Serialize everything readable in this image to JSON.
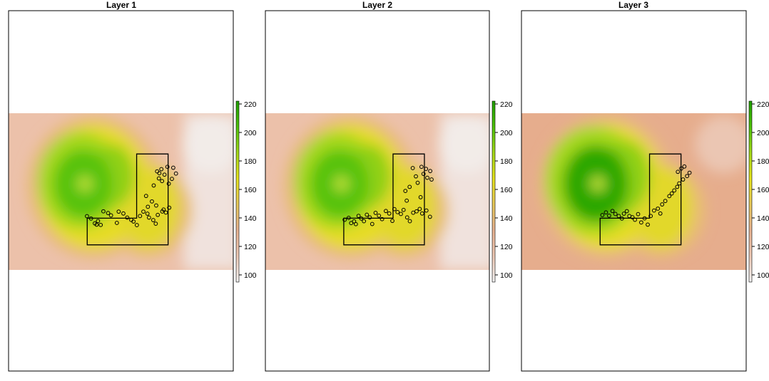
{
  "chart_data": [
    {
      "type": "heatmap",
      "title": "Layer 1",
      "xlabel": "",
      "ylabel": "",
      "legend_placement": "right",
      "color_scale": {
        "min": 95,
        "max": 222,
        "ticks": [
          100,
          120,
          140,
          160,
          180,
          200,
          220
        ],
        "tick_labels": [
          "100",
          "120",
          "140",
          "160",
          "180",
          "200",
          "220"
        ],
        "colors": [
          "#f2f2f2",
          "#eec9b5",
          "#e8b291",
          "#e8c95a",
          "#e6e31c",
          "#a3d818",
          "#4ec20a",
          "#1f9e00"
        ]
      },
      "points": [
        [
          0.349,
          0.657
        ],
        [
          0.367,
          0.672
        ],
        [
          0.384,
          0.703
        ],
        [
          0.398,
          0.688
        ],
        [
          0.392,
          0.711
        ],
        [
          0.41,
          0.713
        ],
        [
          0.422,
          0.626
        ],
        [
          0.443,
          0.637
        ],
        [
          0.456,
          0.652
        ],
        [
          0.482,
          0.7
        ],
        [
          0.49,
          0.628
        ],
        [
          0.511,
          0.64
        ],
        [
          0.528,
          0.666
        ],
        [
          0.546,
          0.681
        ],
        [
          0.556,
          0.691
        ],
        [
          0.571,
          0.714
        ],
        [
          0.585,
          0.656
        ],
        [
          0.6,
          0.628
        ],
        [
          0.618,
          0.641
        ],
        [
          0.625,
          0.666
        ],
        [
          0.644,
          0.682
        ],
        [
          0.655,
          0.705
        ],
        [
          0.664,
          0.649
        ],
        [
          0.684,
          0.627
        ],
        [
          0.69,
          0.615
        ],
        [
          0.7,
          0.634
        ],
        [
          0.715,
          0.603
        ],
        [
          0.657,
          0.589
        ],
        [
          0.638,
          0.563
        ],
        [
          0.62,
          0.597
        ],
        [
          0.612,
          0.528
        ],
        [
          0.646,
          0.461
        ],
        [
          0.669,
          0.416
        ],
        [
          0.683,
          0.433
        ],
        [
          0.694,
          0.392
        ],
        [
          0.713,
          0.45
        ],
        [
          0.727,
          0.419
        ],
        [
          0.68,
          0.357
        ],
        [
          0.707,
          0.342
        ],
        [
          0.733,
          0.348
        ],
        [
          0.745,
          0.385
        ],
        [
          0.661,
          0.371
        ],
        [
          0.671,
          0.383
        ]
      ]
    },
    {
      "type": "heatmap",
      "title": "Layer 2",
      "xlabel": "",
      "ylabel": "",
      "legend_placement": "right",
      "color_scale": {
        "min": 95,
        "max": 222,
        "ticks": [
          100,
          120,
          140,
          160,
          180,
          200,
          220
        ],
        "tick_labels": [
          "100",
          "120",
          "140",
          "160",
          "180",
          "200",
          "220"
        ],
        "colors": [
          "#f2f2f2",
          "#eec9b5",
          "#e8b291",
          "#e8c95a",
          "#e6e31c",
          "#a3d818",
          "#4ec20a",
          "#1f9e00"
        ]
      },
      "points": [
        [
          0.354,
          0.68
        ],
        [
          0.372,
          0.668
        ],
        [
          0.383,
          0.701
        ],
        [
          0.396,
          0.69
        ],
        [
          0.404,
          0.708
        ],
        [
          0.416,
          0.655
        ],
        [
          0.428,
          0.672
        ],
        [
          0.44,
          0.689
        ],
        [
          0.453,
          0.648
        ],
        [
          0.466,
          0.665
        ],
        [
          0.477,
          0.707
        ],
        [
          0.492,
          0.636
        ],
        [
          0.507,
          0.654
        ],
        [
          0.521,
          0.676
        ],
        [
          0.538,
          0.624
        ],
        [
          0.553,
          0.64
        ],
        [
          0.567,
          0.687
        ],
        [
          0.576,
          0.612
        ],
        [
          0.59,
          0.631
        ],
        [
          0.605,
          0.643
        ],
        [
          0.617,
          0.617
        ],
        [
          0.633,
          0.665
        ],
        [
          0.645,
          0.689
        ],
        [
          0.66,
          0.635
        ],
        [
          0.675,
          0.626
        ],
        [
          0.689,
          0.611
        ],
        [
          0.7,
          0.64
        ],
        [
          0.719,
          0.621
        ],
        [
          0.735,
          0.661
        ],
        [
          0.693,
          0.536
        ],
        [
          0.631,
          0.558
        ],
        [
          0.625,
          0.496
        ],
        [
          0.644,
          0.47
        ],
        [
          0.68,
          0.444
        ],
        [
          0.706,
          0.387
        ],
        [
          0.723,
          0.412
        ],
        [
          0.736,
          0.369
        ],
        [
          0.742,
          0.423
        ],
        [
          0.672,
          0.403
        ],
        [
          0.658,
          0.35
        ],
        [
          0.697,
          0.342
        ],
        [
          0.717,
          0.355
        ]
      ]
    },
    {
      "type": "heatmap",
      "title": "Layer 3",
      "xlabel": "",
      "ylabel": "",
      "legend_placement": "right",
      "color_scale": {
        "min": 95,
        "max": 222,
        "ticks": [
          100,
          120,
          140,
          160,
          180,
          200,
          220
        ],
        "tick_labels": [
          "100",
          "120",
          "140",
          "160",
          "180",
          "200",
          "220"
        ],
        "colors": [
          "#f2f2f2",
          "#eec9b5",
          "#e8b291",
          "#e8c95a",
          "#e6e31c",
          "#a3d818",
          "#4ec20a",
          "#1f9e00"
        ]
      },
      "points": [
        [
          0.36,
          0.65
        ],
        [
          0.376,
          0.633
        ],
        [
          0.39,
          0.654
        ],
        [
          0.405,
          0.624
        ],
        [
          0.418,
          0.643
        ],
        [
          0.433,
          0.656
        ],
        [
          0.447,
          0.672
        ],
        [
          0.456,
          0.641
        ],
        [
          0.469,
          0.625
        ],
        [
          0.48,
          0.656
        ],
        [
          0.494,
          0.664
        ],
        [
          0.505,
          0.68
        ],
        [
          0.519,
          0.644
        ],
        [
          0.533,
          0.697
        ],
        [
          0.548,
          0.671
        ],
        [
          0.562,
          0.711
        ],
        [
          0.575,
          0.656
        ],
        [
          0.59,
          0.621
        ],
        [
          0.607,
          0.609
        ],
        [
          0.618,
          0.64
        ],
        [
          0.626,
          0.582
        ],
        [
          0.64,
          0.56
        ],
        [
          0.658,
          0.529
        ],
        [
          0.669,
          0.512
        ],
        [
          0.68,
          0.493
        ],
        [
          0.693,
          0.47
        ],
        [
          0.702,
          0.448
        ],
        [
          0.719,
          0.423
        ],
        [
          0.737,
          0.401
        ],
        [
          0.748,
          0.38
        ],
        [
          0.696,
          0.374
        ],
        [
          0.711,
          0.353
        ],
        [
          0.725,
          0.34
        ]
      ]
    }
  ]
}
